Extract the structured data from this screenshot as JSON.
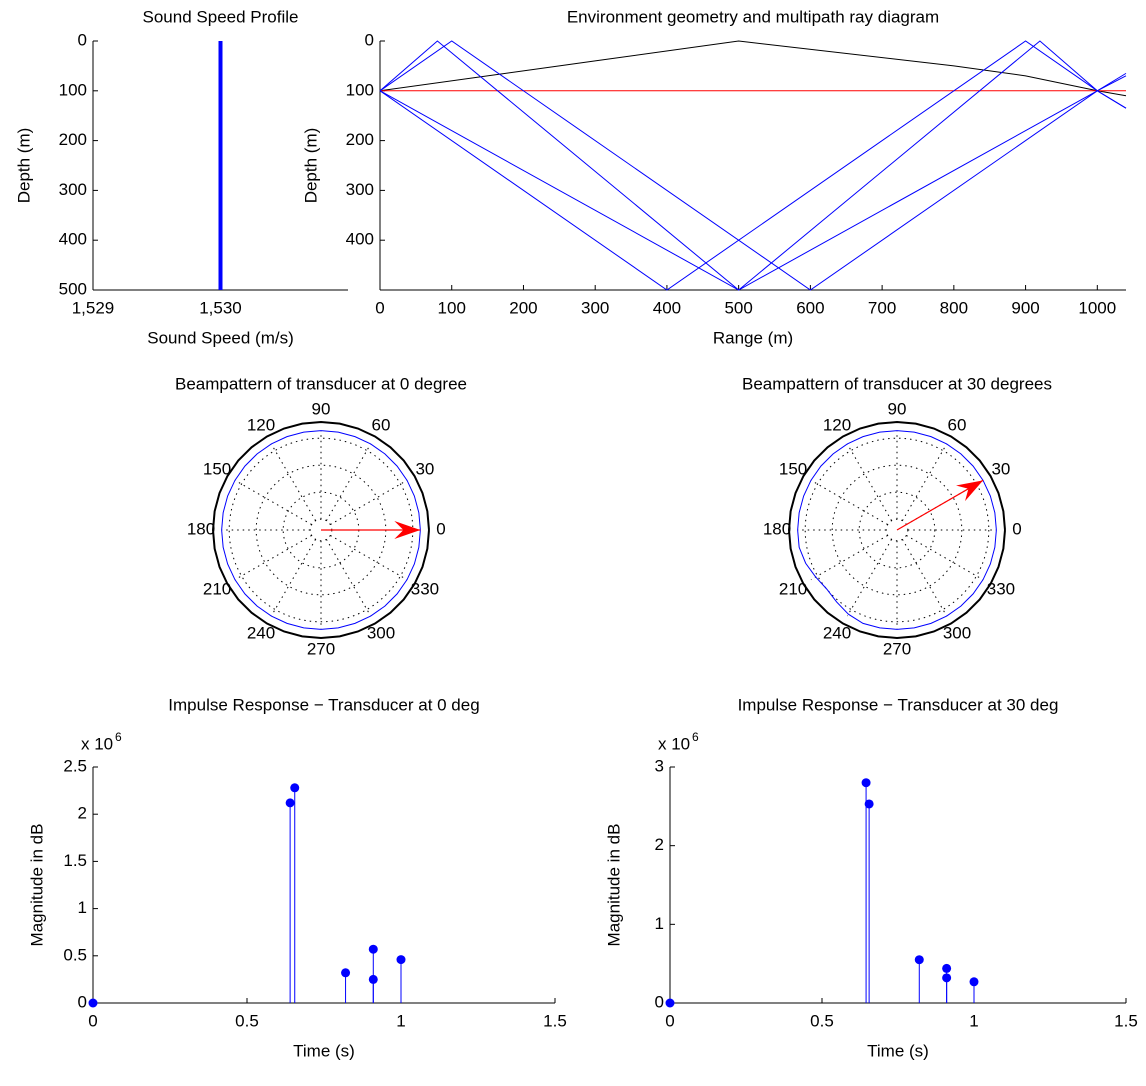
{
  "chart_data": [
    {
      "type": "line",
      "title": "Sound Speed Profile",
      "xlabel": "Sound Speed (m/s)",
      "ylabel": "Depth (m)",
      "xlim": [
        1529,
        1531
      ],
      "xticks": [
        {
          "value": 1529,
          "label": "1,529"
        },
        {
          "value": 1530,
          "label": "1,530"
        }
      ],
      "ylim": [
        0,
        500
      ],
      "yticks": [
        0,
        100,
        200,
        300,
        400,
        500
      ],
      "y_reversed": true,
      "series": [
        {
          "color": "#0000ff",
          "linewidth": 4,
          "x": [
            1530,
            1530
          ],
          "values": [
            0,
            500
          ]
        }
      ]
    },
    {
      "type": "line",
      "title": "Environment geometry and multipath ray diagram",
      "xlabel": "Range (m)",
      "ylabel": "Depth (m)",
      "xlim": [
        0,
        1040
      ],
      "xticks": [
        0,
        100,
        200,
        300,
        400,
        500,
        600,
        700,
        800,
        900,
        1000
      ],
      "ylim": [
        0,
        500
      ],
      "yticks": [
        0,
        100,
        200,
        300,
        400
      ],
      "y_reversed": true,
      "series": [
        {
          "color": "#000000",
          "linewidth": 1,
          "x": [
            0,
            250,
            300,
            500,
            800,
            900,
            1000,
            1040
          ],
          "values": [
            100,
            50,
            40,
            0,
            50,
            70,
            100,
            110
          ]
        },
        {
          "color": "#ff0000",
          "linewidth": 1,
          "x": [
            0,
            1040
          ],
          "values": [
            100,
            100
          ]
        },
        {
          "color": "#0000ff",
          "linewidth": 1,
          "x": [
            0,
            80,
            500,
            1000,
            1040
          ],
          "values": [
            100,
            0,
            500,
            100,
            65
          ]
        },
        {
          "color": "#0000ff",
          "linewidth": 1,
          "x": [
            0,
            100,
            600,
            1000,
            1040
          ],
          "values": [
            100,
            0,
            500,
            100,
            135
          ]
        },
        {
          "color": "#0000ff",
          "linewidth": 1,
          "x": [
            0,
            400,
            900,
            1000,
            1040
          ],
          "values": [
            100,
            500,
            0,
            100,
            135
          ]
        },
        {
          "color": "#0000ff",
          "linewidth": 1,
          "x": [
            0,
            500,
            920,
            1000,
            1040
          ],
          "values": [
            100,
            500,
            0,
            100,
            70
          ]
        }
      ]
    },
    {
      "type": "polar",
      "title": "Beampattern of transducer at 0 degree",
      "rlim": [
        0,
        1
      ],
      "rticks": [
        0.1,
        0.35,
        0.6,
        0.85
      ],
      "thetaticks": [
        0,
        30,
        60,
        90,
        120,
        150,
        180,
        210,
        240,
        270,
        300,
        330
      ],
      "theta": [
        0,
        10,
        20,
        30,
        40,
        50,
        60,
        70,
        80,
        90,
        100,
        110,
        120,
        130,
        140,
        150,
        160,
        170,
        180,
        190,
        200,
        210,
        220,
        230,
        240,
        250,
        260,
        270,
        280,
        290,
        300,
        310,
        320,
        330,
        340,
        350,
        360
      ],
      "series": [
        {
          "color": "#000000",
          "linewidth": 2,
          "r": [
            1,
            1,
            1,
            1,
            1,
            1,
            1,
            1,
            1,
            1,
            1,
            1,
            1,
            1,
            1,
            1,
            1,
            1,
            1,
            1,
            1,
            1,
            1,
            1,
            1,
            1,
            1,
            1,
            1,
            1,
            1,
            1,
            1,
            1,
            1,
            1,
            1
          ]
        },
        {
          "color": "#0000ff",
          "linewidth": 1,
          "r": [
            0.92,
            0.92,
            0.92,
            0.92,
            0.92,
            0.92,
            0.92,
            0.92,
            0.92,
            0.92,
            0.92,
            0.92,
            0.92,
            0.92,
            0.92,
            0.92,
            0.92,
            0.92,
            0.92,
            0.92,
            0.92,
            0.92,
            0.92,
            0.92,
            0.92,
            0.92,
            0.92,
            0.92,
            0.92,
            0.92,
            0.92,
            0.92,
            0.92,
            0.92,
            0.92,
            0.92,
            0.92
          ]
        }
      ],
      "arrow": {
        "theta": 0,
        "r": 0.92,
        "color": "#ff0000"
      }
    },
    {
      "type": "polar",
      "title": "Beampattern of transducer at 30 degrees",
      "rlim": [
        0,
        1
      ],
      "rticks": [
        0.1,
        0.35,
        0.6,
        0.85
      ],
      "thetaticks": [
        0,
        30,
        60,
        90,
        120,
        150,
        180,
        210,
        240,
        270,
        300,
        330
      ],
      "theta": [
        0,
        10,
        20,
        30,
        40,
        50,
        60,
        70,
        80,
        90,
        100,
        110,
        120,
        130,
        140,
        150,
        160,
        170,
        180,
        190,
        200,
        210,
        220,
        230,
        240,
        250,
        260,
        270,
        280,
        290,
        300,
        310,
        320,
        330,
        340,
        350,
        360
      ],
      "series": [
        {
          "color": "#000000",
          "linewidth": 2,
          "r": [
            1,
            1,
            1,
            1,
            1,
            1,
            1,
            1,
            1,
            1,
            1,
            1,
            1,
            1,
            1,
            1,
            1,
            1,
            1,
            1,
            1,
            1,
            1,
            1,
            1,
            1,
            1,
            1,
            1,
            1,
            1,
            1,
            1,
            1,
            1,
            1,
            1
          ]
        },
        {
          "color": "#0000ff",
          "linewidth": 1,
          "r": [
            0.92,
            0.92,
            0.92,
            0.92,
            0.92,
            0.92,
            0.92,
            0.92,
            0.92,
            0.92,
            0.92,
            0.92,
            0.92,
            0.92,
            0.92,
            0.92,
            0.92,
            0.92,
            0.92,
            0.92,
            0.9,
            0.87,
            0.85,
            0.87,
            0.9,
            0.92,
            0.92,
            0.92,
            0.92,
            0.92,
            0.92,
            0.92,
            0.92,
            0.92,
            0.92,
            0.92,
            0.92
          ]
        }
      ],
      "arrow": {
        "theta": 30,
        "r": 0.92,
        "color": "#ff0000"
      }
    },
    {
      "type": "stem",
      "title": "Impulse Response − Transducer at 0 deg",
      "xlabel": "Time (s)",
      "ylabel": "Magnitude in dB",
      "y_multiplier": {
        "base": "x 10",
        "exponent": "6"
      },
      "xlim": [
        0,
        1.5
      ],
      "xticks": [
        0,
        0.5,
        1,
        1.5
      ],
      "ylim": [
        0,
        2500000
      ],
      "yticks": [
        0,
        {
          "value": 500000,
          "label": "0.5"
        },
        {
          "value": 1000000,
          "label": "1"
        },
        {
          "value": 1500000,
          "label": "1.5"
        },
        {
          "value": 2000000,
          "label": "2"
        },
        {
          "value": 2500000,
          "label": "2.5"
        }
      ],
      "series": [
        {
          "color": "#0000ff",
          "x": [
            0,
            0.64,
            0.655,
            0.82,
            0.91,
            0.91,
            1.0
          ],
          "values": [
            0,
            2120000,
            2280000,
            320000,
            250000,
            570000,
            460000
          ]
        }
      ]
    },
    {
      "type": "stem",
      "title": "Impulse Response − Transducer at 30 deg",
      "xlabel": "Time (s)",
      "ylabel": "Magnitude in dB",
      "y_multiplier": {
        "base": "x 10",
        "exponent": "6"
      },
      "xlim": [
        0,
        1.5
      ],
      "xticks": [
        0,
        0.5,
        1,
        1.5
      ],
      "ylim": [
        0,
        3000000
      ],
      "yticks": [
        0,
        {
          "value": 1000000,
          "label": "1"
        },
        {
          "value": 2000000,
          "label": "2"
        },
        {
          "value": 3000000,
          "label": "3"
        }
      ],
      "series": [
        {
          "color": "#0000ff",
          "x": [
            0,
            0.645,
            0.655,
            0.82,
            0.91,
            0.91,
            1.0
          ],
          "values": [
            0,
            2800000,
            2530000,
            550000,
            440000,
            320000,
            270000
          ]
        }
      ]
    }
  ]
}
